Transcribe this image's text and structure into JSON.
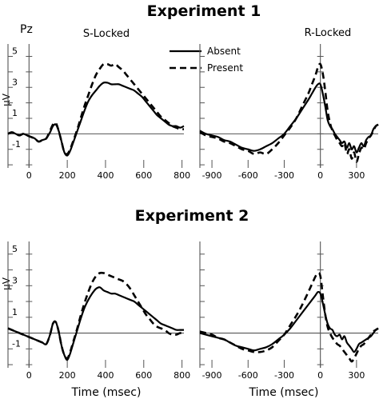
{
  "chart_data": [
    {
      "type": "line",
      "experiment_title": "Experiment 1",
      "site_label": "Pz",
      "title": "S-Locked",
      "xlabel": "",
      "ylabel": "µV",
      "xlim": [
        -110,
        810
      ],
      "ylim": [
        -2.2,
        5.8
      ],
      "xticks": [
        0,
        200,
        400,
        600,
        800
      ],
      "yticks": [
        -1,
        1,
        3,
        5
      ],
      "legend": {
        "placement": "top-right",
        "entries": [
          "Absent",
          "Present"
        ]
      },
      "series": [
        {
          "name": "Absent",
          "style": "solid",
          "x": [
            -110,
            -90,
            -70,
            -50,
            -30,
            -10,
            10,
            30,
            50,
            70,
            90,
            110,
            125,
            140,
            155,
            170,
            185,
            200,
            215,
            230,
            250,
            270,
            290,
            310,
            330,
            350,
            370,
            390,
            410,
            430,
            450,
            470,
            490,
            510,
            530,
            550,
            570,
            590,
            610,
            630,
            650,
            670,
            690,
            710,
            730,
            750,
            770,
            790,
            810
          ],
          "y": [
            0.0,
            0.1,
            0.0,
            -0.1,
            0.0,
            -0.1,
            -0.2,
            -0.3,
            -0.5,
            -0.4,
            -0.3,
            0.1,
            0.5,
            0.6,
            0.2,
            -0.5,
            -1.2,
            -1.4,
            -1.1,
            -0.6,
            0.1,
            0.8,
            1.5,
            2.1,
            2.5,
            2.8,
            3.1,
            3.3,
            3.3,
            3.2,
            3.2,
            3.2,
            3.1,
            3.0,
            2.9,
            2.8,
            2.6,
            2.4,
            2.1,
            1.8,
            1.5,
            1.2,
            1.0,
            0.8,
            0.6,
            0.5,
            0.5,
            0.4,
            0.5
          ]
        },
        {
          "name": "Present",
          "style": "dashed",
          "x": [
            -110,
            -90,
            -70,
            -50,
            -30,
            -10,
            10,
            30,
            50,
            70,
            90,
            110,
            125,
            140,
            155,
            170,
            185,
            200,
            215,
            230,
            250,
            270,
            290,
            310,
            330,
            350,
            370,
            390,
            410,
            430,
            450,
            470,
            490,
            510,
            530,
            550,
            570,
            590,
            610,
            630,
            650,
            670,
            690,
            710,
            730,
            750,
            770,
            790,
            810
          ],
          "y": [
            0.0,
            0.1,
            0.0,
            -0.1,
            0.0,
            -0.1,
            -0.2,
            -0.3,
            -0.5,
            -0.4,
            -0.3,
            0.2,
            0.6,
            0.7,
            0.2,
            -0.5,
            -1.2,
            -1.3,
            -1.0,
            -0.5,
            0.2,
            1.0,
            1.8,
            2.5,
            3.2,
            3.8,
            4.2,
            4.5,
            4.5,
            4.4,
            4.5,
            4.3,
            4.1,
            3.8,
            3.5,
            3.2,
            2.9,
            2.6,
            2.3,
            2.0,
            1.7,
            1.4,
            1.1,
            0.9,
            0.7,
            0.5,
            0.4,
            0.3,
            0.3
          ]
        }
      ]
    },
    {
      "type": "line",
      "title": "R-Locked",
      "xlabel": "",
      "ylabel": "",
      "xlim": [
        -1000,
        480
      ],
      "ylim": [
        -2.2,
        5.8
      ],
      "xticks": [
        -900,
        -600,
        -300,
        0,
        300
      ],
      "yticks": [
        -1,
        1,
        3,
        5
      ],
      "series": [
        {
          "name": "Absent",
          "style": "solid",
          "x": [
            -1000,
            -950,
            -900,
            -850,
            -800,
            -750,
            -700,
            -650,
            -600,
            -550,
            -500,
            -450,
            -400,
            -350,
            -300,
            -250,
            -200,
            -150,
            -100,
            -70,
            -40,
            -20,
            0,
            20,
            40,
            60,
            80,
            100,
            120,
            140,
            160,
            180,
            200,
            220,
            240,
            260,
            280,
            300,
            320,
            340,
            360,
            380,
            400,
            420,
            440,
            460,
            480
          ],
          "y": [
            0.2,
            0.0,
            -0.1,
            -0.2,
            -0.4,
            -0.5,
            -0.7,
            -0.9,
            -1.0,
            -1.1,
            -1.0,
            -0.8,
            -0.6,
            -0.3,
            0.0,
            0.5,
            1.0,
            1.6,
            2.2,
            2.6,
            3.0,
            3.2,
            3.2,
            2.6,
            1.8,
            0.9,
            0.5,
            0.3,
            0.0,
            -0.2,
            -0.4,
            -0.6,
            -0.5,
            -0.9,
            -0.6,
            -1.0,
            -0.8,
            -1.2,
            -0.9,
            -0.6,
            -0.8,
            -0.4,
            -0.2,
            -0.1,
            0.3,
            0.5,
            0.6
          ]
        },
        {
          "name": "Present",
          "style": "dashed",
          "x": [
            -1000,
            -950,
            -900,
            -850,
            -800,
            -750,
            -700,
            -650,
            -600,
            -550,
            -500,
            -450,
            -400,
            -350,
            -300,
            -250,
            -200,
            -150,
            -100,
            -70,
            -40,
            -20,
            0,
            20,
            40,
            60,
            80,
            100,
            120,
            140,
            160,
            180,
            200,
            220,
            240,
            260,
            280,
            300,
            320,
            340,
            360,
            380,
            400,
            420,
            440,
            460,
            480
          ],
          "y": [
            0.1,
            -0.1,
            -0.2,
            -0.3,
            -0.5,
            -0.6,
            -0.8,
            -1.0,
            -1.1,
            -1.3,
            -1.2,
            -1.3,
            -1.0,
            -0.6,
            -0.1,
            0.4,
            1.0,
            1.8,
            2.6,
            3.2,
            3.8,
            4.3,
            4.5,
            3.9,
            2.8,
            1.5,
            0.7,
            0.2,
            -0.1,
            -0.4,
            -0.6,
            -0.8,
            -0.6,
            -1.3,
            -1.0,
            -1.6,
            -1.2,
            -1.8,
            -1.3,
            -0.9,
            -1.0,
            -0.6,
            -0.3,
            -0.1,
            0.2,
            0.5,
            0.6
          ]
        }
      ]
    },
    {
      "type": "line",
      "experiment_title": "Experiment 2",
      "title": "",
      "xlabel": "Time (msec)",
      "ylabel": "µV",
      "xlim": [
        -110,
        810
      ],
      "ylim": [
        -2.2,
        5.8
      ],
      "xticks": [
        0,
        200,
        400,
        600,
        800
      ],
      "yticks": [
        -1,
        1,
        3,
        5
      ],
      "series": [
        {
          "name": "Absent",
          "style": "solid",
          "x": [
            -110,
            -90,
            -70,
            -50,
            -30,
            -10,
            10,
            30,
            50,
            70,
            90,
            110,
            125,
            140,
            155,
            170,
            185,
            200,
            215,
            230,
            250,
            270,
            290,
            310,
            330,
            350,
            370,
            390,
            410,
            430,
            450,
            470,
            490,
            510,
            530,
            550,
            570,
            590,
            610,
            630,
            650,
            670,
            690,
            710,
            730,
            750,
            770,
            790,
            810
          ],
          "y": [
            0.3,
            0.2,
            0.1,
            0.0,
            -0.1,
            -0.2,
            -0.3,
            -0.4,
            -0.5,
            -0.6,
            -0.7,
            -0.1,
            0.6,
            0.7,
            0.1,
            -0.8,
            -1.4,
            -1.7,
            -1.3,
            -0.7,
            0.1,
            0.9,
            1.6,
            2.1,
            2.5,
            2.8,
            2.9,
            2.7,
            2.6,
            2.5,
            2.5,
            2.4,
            2.3,
            2.2,
            2.1,
            2.0,
            1.8,
            1.6,
            1.4,
            1.2,
            1.0,
            0.8,
            0.6,
            0.5,
            0.4,
            0.3,
            0.2,
            0.2,
            0.2
          ]
        },
        {
          "name": "Present",
          "style": "dashed",
          "x": [
            -110,
            -90,
            -70,
            -50,
            -30,
            -10,
            10,
            30,
            50,
            70,
            90,
            110,
            125,
            140,
            155,
            170,
            185,
            200,
            215,
            230,
            250,
            270,
            290,
            310,
            330,
            350,
            370,
            390,
            410,
            430,
            450,
            470,
            490,
            510,
            530,
            550,
            570,
            590,
            610,
            630,
            650,
            670,
            690,
            710,
            730,
            750,
            770,
            790,
            810
          ],
          "y": [
            0.3,
            0.2,
            0.1,
            0.0,
            -0.1,
            -0.2,
            -0.3,
            -0.4,
            -0.5,
            -0.6,
            -0.7,
            -0.1,
            0.6,
            0.7,
            0.1,
            -0.8,
            -1.4,
            -1.6,
            -1.2,
            -0.6,
            0.2,
            1.1,
            1.9,
            2.6,
            3.2,
            3.6,
            3.8,
            3.8,
            3.7,
            3.6,
            3.5,
            3.4,
            3.3,
            3.1,
            2.8,
            2.4,
            2.0,
            1.6,
            1.2,
            0.9,
            0.6,
            0.4,
            0.3,
            0.2,
            0.0,
            -0.1,
            -0.1,
            0.0,
            0.0
          ]
        }
      ]
    },
    {
      "type": "line",
      "title": "",
      "xlabel": "Time (msec)",
      "ylabel": "",
      "xlim": [
        -1000,
        480
      ],
      "ylim": [
        -2.2,
        5.8
      ],
      "xticks": [
        -900,
        -600,
        -300,
        0,
        300
      ],
      "yticks": [
        -1,
        1,
        3,
        5
      ],
      "series": [
        {
          "name": "Absent",
          "style": "solid",
          "x": [
            -1000,
            -950,
            -900,
            -850,
            -800,
            -750,
            -700,
            -650,
            -600,
            -550,
            -500,
            -450,
            -400,
            -350,
            -300,
            -250,
            -200,
            -150,
            -100,
            -70,
            -40,
            -20,
            0,
            20,
            40,
            60,
            80,
            100,
            120,
            140,
            160,
            180,
            200,
            220,
            240,
            260,
            280,
            300,
            320,
            340,
            360,
            380,
            400,
            420,
            440,
            460,
            480
          ],
          "y": [
            0.0,
            -0.1,
            -0.2,
            -0.3,
            -0.4,
            -0.6,
            -0.8,
            -0.9,
            -1.0,
            -1.1,
            -1.0,
            -0.9,
            -0.7,
            -0.4,
            -0.1,
            0.3,
            0.8,
            1.3,
            1.8,
            2.1,
            2.4,
            2.6,
            2.5,
            1.9,
            1.2,
            0.6,
            0.3,
            0.2,
            -0.1,
            -0.2,
            -0.1,
            -0.4,
            -0.2,
            -0.6,
            -0.8,
            -1.0,
            -1.2,
            -1.0,
            -0.7,
            -0.6,
            -0.5,
            -0.4,
            -0.3,
            -0.2,
            0.0,
            0.2,
            0.3
          ]
        },
        {
          "name": "Present",
          "style": "dashed",
          "x": [
            -1000,
            -950,
            -900,
            -850,
            -800,
            -750,
            -700,
            -650,
            -600,
            -550,
            -500,
            -450,
            -400,
            -350,
            -300,
            -250,
            -200,
            -150,
            -100,
            -70,
            -40,
            -20,
            0,
            20,
            40,
            60,
            80,
            100,
            120,
            140,
            160,
            180,
            200,
            220,
            240,
            260,
            280,
            300,
            320,
            340,
            360,
            380,
            400,
            420,
            440,
            460,
            480
          ],
          "y": [
            0.1,
            0.0,
            -0.1,
            -0.3,
            -0.4,
            -0.6,
            -0.8,
            -1.0,
            -1.1,
            -1.2,
            -1.2,
            -1.1,
            -0.9,
            -0.5,
            -0.1,
            0.5,
            1.1,
            1.8,
            2.6,
            3.1,
            3.6,
            3.8,
            3.6,
            2.4,
            1.2,
            0.4,
            0.0,
            -0.3,
            -0.5,
            -0.7,
            -0.8,
            -1.0,
            -1.2,
            -1.4,
            -1.6,
            -1.8,
            -1.6,
            -1.3,
            -1.0,
            -0.8,
            -0.7,
            -0.5,
            -0.3,
            -0.1,
            0.1,
            0.2,
            0.3
          ]
        }
      ]
    }
  ]
}
